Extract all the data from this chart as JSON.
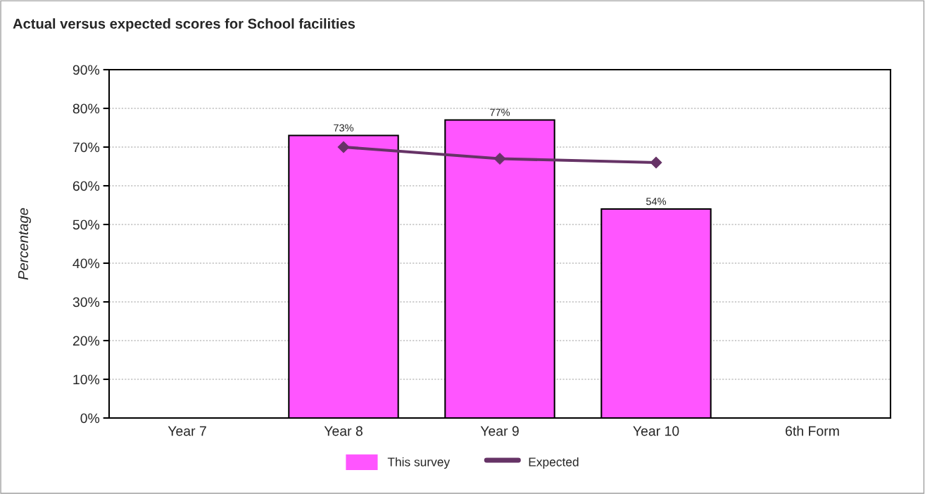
{
  "chart_data": {
    "type": "bar",
    "title": "Actual versus expected scores for School facilities",
    "ylabel": "Percentage",
    "categories": [
      "Year 7",
      "Year 8",
      "Year 9",
      "Year 10",
      "6th Form"
    ],
    "series": [
      {
        "name": "This survey",
        "color": "#ff55ff",
        "values": [
          null,
          73,
          77,
          54,
          null
        ],
        "value_labels": [
          null,
          "73%",
          "77%",
          "54%",
          null
        ]
      },
      {
        "name": "Expected",
        "type": "line",
        "color": "#663366",
        "marker": "diamond",
        "values": [
          null,
          70,
          67,
          66,
          null
        ]
      }
    ],
    "ylim": [
      0,
      90
    ],
    "yticks": [
      {
        "value": 0,
        "label": "0%"
      },
      {
        "value": 10,
        "label": "10%"
      },
      {
        "value": 20,
        "label": "20%"
      },
      {
        "value": 30,
        "label": "30%"
      },
      {
        "value": 40,
        "label": "40%"
      },
      {
        "value": 50,
        "label": "50%"
      },
      {
        "value": 60,
        "label": "60%"
      },
      {
        "value": 70,
        "label": "70%"
      },
      {
        "value": 80,
        "label": "80%"
      },
      {
        "value": 90,
        "label": "90%"
      }
    ],
    "grid": "y",
    "legend": "bottom"
  }
}
